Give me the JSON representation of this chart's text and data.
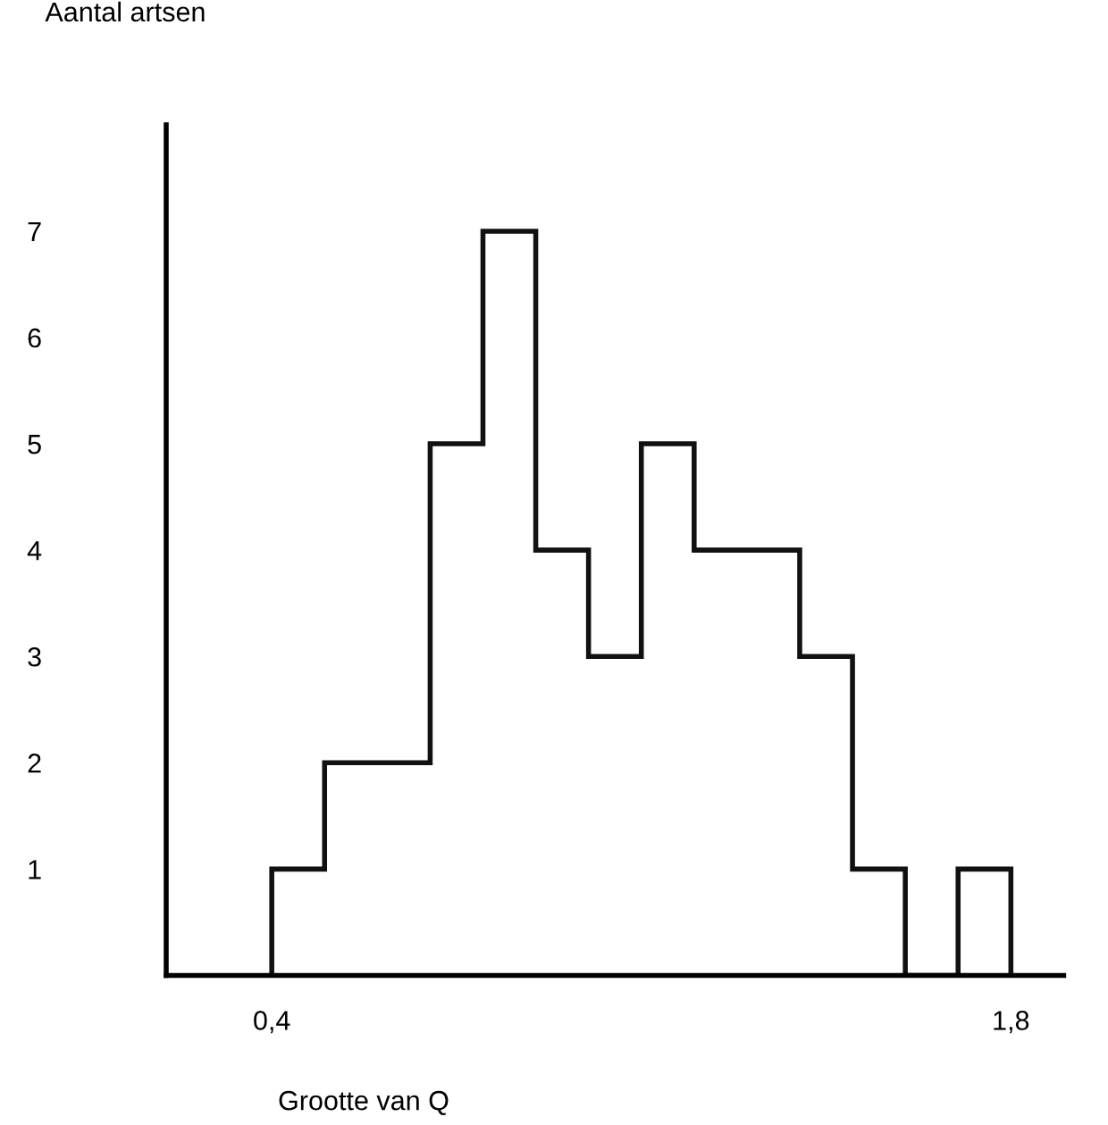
{
  "chart_data": {
    "type": "histogram",
    "bins": [
      0.4,
      0.5,
      0.6,
      0.7,
      0.8,
      0.9,
      1.0,
      1.1,
      1.2,
      1.3,
      1.4,
      1.5,
      1.6,
      1.7,
      1.8
    ],
    "values": [
      1,
      2,
      2,
      5,
      7,
      4,
      3,
      5,
      4,
      4,
      3,
      1,
      0,
      1
    ],
    "color": "#111111",
    "xlabel": "Grootte van Q",
    "ylabel": "Aantal artsen",
    "xlim": [
      0.2,
      1.9
    ],
    "ylim": [
      0,
      8
    ],
    "xticks": [
      {
        "value": 0.4,
        "label": "0,4"
      },
      {
        "value": 1.8,
        "label": "1,8"
      }
    ],
    "yticks": [
      1,
      2,
      3,
      4,
      5,
      6,
      7
    ],
    "grid": false,
    "legend": false
  }
}
